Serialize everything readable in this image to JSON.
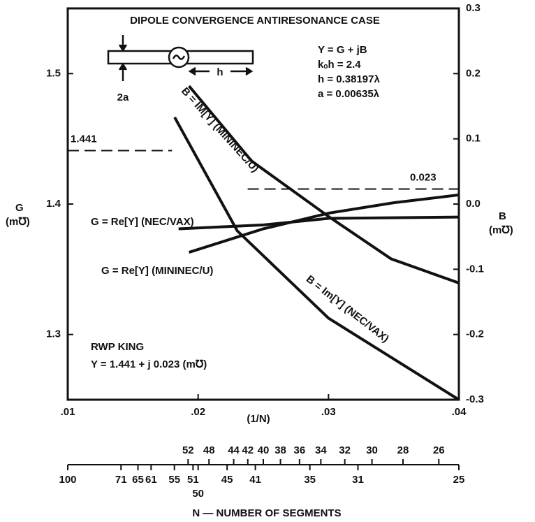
{
  "chart_data": {
    "type": "line",
    "title": "DIPOLE CONVERGENCE ANTIRESONANCE CASE",
    "x_label": "(1/N)",
    "y_label": "G (m℧)",
    "y2_label": "B (m℧)",
    "xlim": [
      0.01,
      0.04
    ],
    "xticks": [
      {
        "value": 0.01,
        "label": ".01"
      },
      {
        "value": 0.02,
        "label": ".02"
      },
      {
        "value": 0.03,
        "label": ".03"
      },
      {
        "value": 0.04,
        "label": ".04"
      }
    ],
    "ylim": [
      1.25,
      1.55
    ],
    "yticks": [
      1.3,
      1.4,
      1.5
    ],
    "y2lim": [
      -0.3,
      0.3
    ],
    "y2ticks": [
      0.3,
      0.2,
      0.1,
      {
        "value": 0,
        "label": "0.0"
      },
      -0.1,
      -0.2,
      -0.3
    ],
    "series": [
      {
        "name": "G = Re[Y] (NEC/VAX)",
        "color": "#111111",
        "x": [
          0.0185,
          0.025,
          0.03,
          0.04
        ],
        "values": [
          1.381,
          1.384,
          1.389,
          1.39
        ]
      },
      {
        "name": "G = Re[Y] (MININEC/U)",
        "color": "#111111",
        "x": [
          0.0193,
          0.025,
          0.03,
          0.035,
          0.04
        ],
        "values": [
          1.363,
          1.381,
          1.393,
          1.401,
          1.407
        ]
      },
      {
        "name": "B = IM[Y] (MININEC/U)",
        "color": "#111111",
        "axis": "y2",
        "x": [
          0.0193,
          0.0241,
          0.03,
          0.0348,
          0.04
        ],
        "values": [
          0.181,
          0.066,
          -0.019,
          -0.084,
          -0.121
        ]
      },
      {
        "name": "B = Im[Y] (NEC/VAX)",
        "color": "#111111",
        "axis": "y2",
        "x": [
          0.0182,
          0.023,
          0.03,
          0.04
        ],
        "values": [
          0.133,
          -0.041,
          -0.175,
          -0.3
        ]
      }
    ],
    "reference_lines": [
      {
        "label": "1.441",
        "value": 1.441,
        "x": [
          0.01,
          0.018
        ]
      },
      {
        "label": "0.023",
        "value": 0.023,
        "axis": "y2",
        "x": [
          0.0238,
          0.04
        ]
      }
    ],
    "annotations": [
      "Y = G + jB",
      "kₒh = 2.4",
      "h = 0.38197λ",
      "a = 0.00635λ",
      "RWP KING",
      "Y = 1.441 + j 0.023 (m℧)"
    ],
    "diagram_labels": [
      "2a",
      "h"
    ],
    "n_axis": {
      "title": "N — NUMBER OF SEGMENTS",
      "upper_ticks": [
        52,
        48,
        44,
        42,
        40,
        38,
        36,
        34,
        32,
        30,
        28,
        26
      ],
      "lower_ticks": [
        100,
        71,
        65,
        61,
        55,
        51,
        45,
        41,
        35,
        31,
        25
      ],
      "extra_ticks": [
        50
      ]
    }
  }
}
